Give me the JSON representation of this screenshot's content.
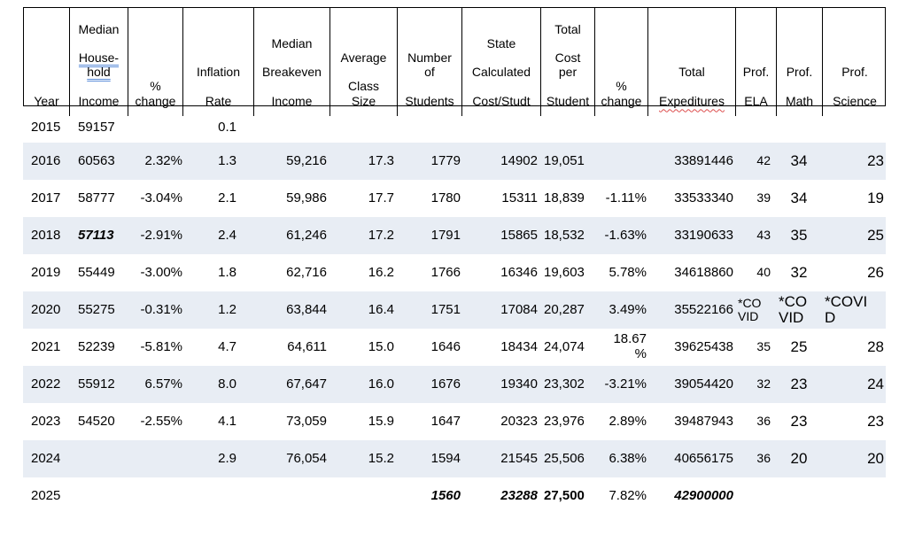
{
  "colors": {
    "row_stripe": "#e8edf4",
    "suggestion_underline_blue": "#5b8dd9",
    "spellcheck_underline_red": "#dc4c4c",
    "header_border": "#000000"
  },
  "table": {
    "header": {
      "year": "Year",
      "mhi": [
        "Median",
        "House-\nhold",
        "Income"
      ],
      "pct1": "%\nchange",
      "infl": [
        "Inflation",
        "Rate"
      ],
      "breakeven": [
        "Median",
        "Breakeven",
        "Income"
      ],
      "class_size": [
        "Average",
        "Class\nSize"
      ],
      "students": [
        "Number\nof",
        "Students"
      ],
      "state_cost": [
        "State",
        "Calculated",
        "Cost/Studt"
      ],
      "tcps": [
        "Total",
        "Cost\nper",
        "Student"
      ],
      "pct2": "%\nchange",
      "exped": [
        "Total",
        "Expeditures"
      ],
      "ela": [
        "Prof.",
        "ELA"
      ],
      "math": [
        "Prof.",
        "Math"
      ],
      "science": [
        "Prof.",
        "Science"
      ]
    },
    "rows": [
      [
        "2015",
        "59157",
        "",
        "0.1",
        "",
        "",
        "",
        "",
        "",
        "",
        "",
        "",
        "",
        ""
      ],
      [
        "2016",
        "60563",
        "2.32%",
        "1.3",
        "59,216",
        "17.3",
        "1779",
        "14902",
        "19,051",
        "",
        "33891446",
        "42",
        "34",
        "23"
      ],
      [
        "2017",
        "58777",
        "-3.04%",
        "2.1",
        "59,986",
        "17.7",
        "1780",
        "15311",
        "18,839",
        "-1.11%",
        "33533340",
        "39",
        "34",
        "19"
      ],
      [
        "2018",
        "57113",
        "-2.91%",
        "2.4",
        "61,246",
        "17.2",
        "1791",
        "15865",
        "18,532",
        "-1.63%",
        "33190633",
        "43",
        "35",
        "25"
      ],
      [
        "2019",
        "55449",
        "-3.00%",
        "1.8",
        "62,716",
        "16.2",
        "1766",
        "16346",
        "19,603",
        "5.78%",
        "34618860",
        "40",
        "32",
        "26"
      ],
      [
        "2020",
        "55275",
        "-0.31%",
        "1.2",
        "63,844",
        "16.4",
        "1751",
        "17084",
        "20,287",
        "3.49%",
        "35522166",
        "*CO\nVID",
        "*CO\nVID",
        "*COVI\nD"
      ],
      [
        "2021",
        "52239",
        "-5.81%",
        "4.7",
        "64,611",
        "15.0",
        "1646",
        "18434",
        "24,074",
        "18.67\n%",
        "39625438",
        "35",
        "25",
        "28"
      ],
      [
        "2022",
        "55912",
        "6.57%",
        "8.0",
        "67,647",
        "16.0",
        "1676",
        "19340",
        "23,302",
        "-3.21%",
        "39054420",
        "32",
        "23",
        "24"
      ],
      [
        "2023",
        "54520",
        "-2.55%",
        "4.1",
        "73,059",
        "15.9",
        "1647",
        "20323",
        "23,976",
        "2.89%",
        "39487943",
        "36",
        "23",
        "23"
      ],
      [
        "2024",
        "",
        "",
        "2.9",
        "76,054",
        "15.2",
        "1594",
        "21545",
        "25,506",
        "6.38%",
        "40656175",
        "36",
        "20",
        "20"
      ],
      [
        "2025",
        "",
        "",
        "",
        "",
        "",
        "1560",
        "23288",
        "27,500",
        "7.82%",
        "42900000",
        "",
        "",
        ""
      ]
    ]
  }
}
